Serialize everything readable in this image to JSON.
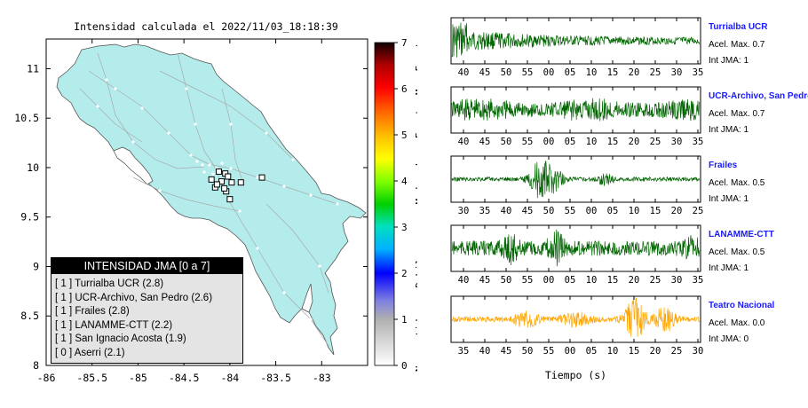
{
  "map": {
    "title": "Intensidad calculada el 2022/11/03_18:18:39",
    "lat_ticks": [
      "11",
      "10.5",
      "10",
      "9.5",
      "9",
      "8.5",
      "8"
    ],
    "lon_ticks": [
      "-86",
      "-85.5",
      "-85",
      "-84.5",
      "-84",
      "-83.5",
      "-83"
    ],
    "colorbar_ticks": [
      "0",
      "1",
      "2",
      "3",
      "4",
      "5",
      "6",
      "7"
    ],
    "colorbar_labels": [
      "No sentido",
      "Debil",
      "Moderado",
      "Fuerte",
      "Muy Fuerte"
    ],
    "land_color": "#b4ecec",
    "legend": {
      "title": "INTENSIDAD JMA [0 a 7]",
      "items": [
        "[ 1 ]  Turrialba UCR (2.8)",
        "[ 1 ]  UCR-Archivo, San Pedro (2.6)",
        "[ 1 ]  Frailes (2.8)",
        "[ 1 ]  LANAMME-CTT (2.2)",
        "[ 1 ]  San Ignacio Acosta (1.9)",
        "[ 0 ]  Aserri (2.1)"
      ]
    }
  },
  "waveforms": {
    "xlabel": "Tiempo (s)",
    "acel_prefix": "Acel. Max.",
    "int_prefix": "Int JMA:",
    "traces": [
      {
        "name": "Turrialba UCR",
        "acel": "0.7",
        "int": "1",
        "color": "#006400",
        "ticks": [
          "40",
          "45",
          "50",
          "55",
          "00",
          "05",
          "10",
          "15",
          "20",
          "25",
          "30",
          "35"
        ]
      },
      {
        "name": "UCR-Archivo, San Pedro",
        "acel": "0.7",
        "int": "1",
        "color": "#006400",
        "ticks": [
          "40",
          "45",
          "50",
          "55",
          "00",
          "05",
          "10",
          "15",
          "20",
          "25",
          "30",
          "35"
        ]
      },
      {
        "name": "Frailes",
        "acel": "0.5",
        "int": "1",
        "color": "#006400",
        "ticks": [
          "30",
          "35",
          "40",
          "45",
          "50",
          "55",
          "00",
          "05",
          "10",
          "15",
          "20",
          "25"
        ]
      },
      {
        "name": "LANAMME-CTT",
        "acel": "0.5",
        "int": "1",
        "color": "#006400",
        "ticks": [
          "40",
          "45",
          "50",
          "55",
          "00",
          "05",
          "10",
          "15",
          "20",
          "25",
          "30",
          "35"
        ]
      },
      {
        "name": "Teatro Nacional",
        "acel": "0.0",
        "int": "0",
        "color": "#ffa500",
        "ticks": [
          "35",
          "40",
          "45",
          "50",
          "55",
          "00",
          "05",
          "10",
          "15",
          "20",
          "25",
          "30"
        ]
      }
    ]
  },
  "chart_data": {
    "type": "scatter",
    "title": "Intensidad calculada el 2022/11/03_18:18:39",
    "xlabel": "",
    "ylabel": "",
    "xlim": [
      -86,
      -82.5
    ],
    "ylim": [
      8,
      11.3
    ],
    "stations": [
      {
        "name": "Turrialba UCR",
        "lon": -83.65,
        "lat": 9.9,
        "int": 2.8
      },
      {
        "name": "UCR-Archivo, San Pedro",
        "lon": -84.05,
        "lat": 9.94,
        "int": 2.6
      },
      {
        "name": "Frailes",
        "lon": -84.04,
        "lat": 9.76,
        "int": 2.8
      },
      {
        "name": "LANAMME-CTT",
        "lon": -84.02,
        "lat": 9.91,
        "int": 2.2
      },
      {
        "name": "San Ignacio Acosta",
        "lon": -84.16,
        "lat": 9.8,
        "int": 1.9
      },
      {
        "name": "Aserri",
        "lon": -84.09,
        "lat": 9.86,
        "int": 2.1
      }
    ],
    "colorbar": {
      "min": 0,
      "max": 7,
      "label_scale": "JMA"
    }
  }
}
